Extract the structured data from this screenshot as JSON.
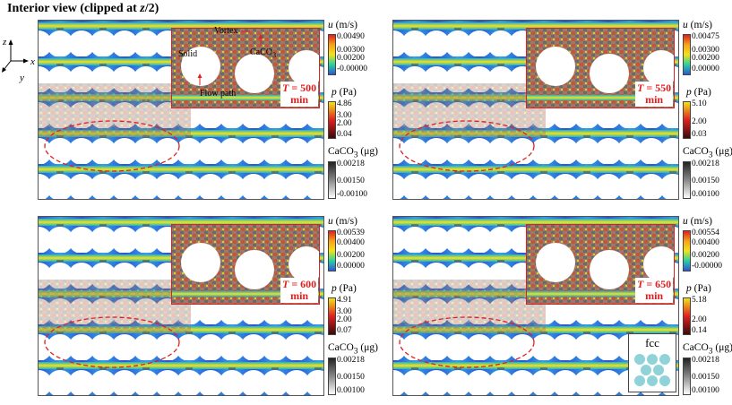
{
  "title": {
    "prefix": "Interior view (clipped at ",
    "var": "z",
    "suffix": "/2)"
  },
  "axes": {
    "z": "z",
    "x": "x",
    "y": "y"
  },
  "annotations": {
    "vortex": "Vortex",
    "solid": "Solid",
    "caco3": "CaCO",
    "caco3_sub": "3",
    "flow_path": "Flow path"
  },
  "panels": [
    {
      "t_prefix": "T",
      "t_eq": " = 500",
      "t_unit": "min",
      "u": {
        "title_var": "u",
        "title_unit": " (m/s)",
        "ticks": [
          "0.00490",
          "0.00300",
          "0.00200",
          "-0.00000"
        ]
      },
      "p": {
        "title_var": "p",
        "title_unit": " (Pa)",
        "ticks": [
          "4.86",
          "3.00",
          "2.00",
          "0.04"
        ]
      },
      "c": {
        "title": "CaCO",
        "sub": "3",
        "unit": " (μg)",
        "ticks": [
          "0.00218",
          "0.00150",
          "-0.00100"
        ]
      }
    },
    {
      "t_prefix": "T",
      "t_eq": " = 550",
      "t_unit": "min",
      "u": {
        "title_var": "u",
        "title_unit": " (m/s)",
        "ticks": [
          "0.00475",
          "0.00300",
          "0.00200",
          "0.00000"
        ]
      },
      "p": {
        "title_var": "p",
        "title_unit": " (Pa)",
        "ticks": [
          "5.10",
          "2.00",
          "0.03"
        ]
      },
      "c": {
        "title": "CaCO",
        "sub": "3",
        "unit": " (μg)",
        "ticks": [
          "0.00218",
          "0.00150",
          "0.00100"
        ]
      }
    },
    {
      "t_prefix": "T",
      "t_eq": " = 600",
      "t_unit": "min",
      "u": {
        "title_var": "u",
        "title_unit": " (m/s)",
        "ticks": [
          "0.00539",
          "0.00400",
          "0.00200",
          "0.00000"
        ]
      },
      "p": {
        "title_var": "p",
        "title_unit": " (Pa)",
        "ticks": [
          "4.91",
          "3.00",
          "2.00",
          "0.07"
        ]
      },
      "c": {
        "title": "CaCO",
        "sub": "3",
        "unit": " (μg)",
        "ticks": [
          "0.00218",
          "0.00150",
          "0.00100"
        ]
      }
    },
    {
      "t_prefix": "T",
      "t_eq": " = 650",
      "t_unit": "min",
      "u": {
        "title_var": "u",
        "title_unit": " (m/s)",
        "ticks": [
          "0.00554",
          "0.00400",
          "0.00200",
          "-0.00000"
        ]
      },
      "p": {
        "title_var": "p",
        "title_unit": " (Pa)",
        "ticks": [
          "5.18",
          "2.00",
          "0.14"
        ]
      },
      "c": {
        "title": "CaCO",
        "sub": "3",
        "unit": " (μg)",
        "ticks": [
          "0.00218",
          "0.00150",
          "0.00100"
        ]
      }
    }
  ],
  "fcc_label": "fcc",
  "colors": {
    "highlight": "#e02020",
    "flow_fast": "#ffd400",
    "flow_mid": "#22c7a0",
    "flow_slow": "#2a4fd6",
    "solid": "#ffffff",
    "deposit_gray": "#8a8a8a",
    "deposit_brown": "#b85a3c"
  }
}
